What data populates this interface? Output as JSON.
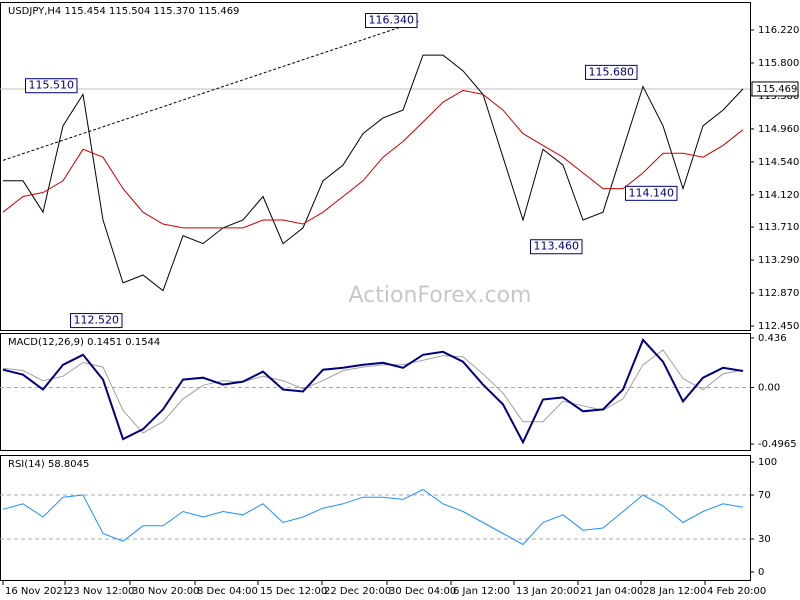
{
  "chart_data": [
    {
      "type": "line",
      "title": "USDJPY,H4  115.454 115.504 115.370 115.469",
      "watermark": "ActionForex.com",
      "x": [
        0,
        1,
        2,
        3,
        4,
        5,
        6,
        7,
        8,
        9,
        10,
        11,
        12,
        13,
        14,
        15,
        16,
        17,
        18,
        19,
        20,
        21,
        22,
        23,
        24,
        25,
        26,
        27,
        28,
        29,
        30,
        31,
        32,
        33,
        34,
        35,
        36,
        37
      ],
      "xlim": [
        -0.15,
        37.35
      ],
      "ylim": [
        112.4,
        116.576
      ],
      "yticks": [
        {
          "value": 116.22,
          "label": "116.220"
        },
        {
          "value": 115.8,
          "label": "115.800"
        },
        {
          "value": 115.38,
          "label": "115.380"
        },
        {
          "value": 114.96,
          "label": "114.960"
        },
        {
          "value": 114.54,
          "label": "114.540"
        },
        {
          "value": 114.12,
          "label": "114.120"
        },
        {
          "value": 113.71,
          "label": "113.710"
        },
        {
          "value": 113.29,
          "label": "113.290"
        },
        {
          "value": 112.87,
          "label": "112.870"
        },
        {
          "value": 112.45,
          "label": "112.450"
        }
      ],
      "series": [
        {
          "color": "#000000",
          "values": [
            114.3,
            114.3,
            113.9,
            115.0,
            115.4,
            113.8,
            113.0,
            113.1,
            112.9,
            113.6,
            113.5,
            113.7,
            113.8,
            114.1,
            113.5,
            113.7,
            114.3,
            114.5,
            114.9,
            115.1,
            115.2,
            115.9,
            115.9,
            115.7,
            115.4,
            114.6,
            113.8,
            114.7,
            114.5,
            113.8,
            113.9,
            114.7,
            115.5,
            115.0,
            114.2,
            115.0,
            115.2,
            115.469
          ]
        },
        {
          "color": "#d00000",
          "values": [
            113.9,
            114.1,
            114.15,
            114.3,
            114.7,
            114.6,
            114.2,
            113.9,
            113.75,
            113.7,
            113.7,
            113.7,
            113.7,
            113.8,
            113.8,
            113.75,
            113.9,
            114.1,
            114.3,
            114.6,
            114.8,
            115.05,
            115.3,
            115.45,
            115.4,
            115.2,
            114.9,
            114.75,
            114.6,
            114.4,
            114.2,
            114.2,
            114.4,
            114.65,
            114.65,
            114.6,
            114.75,
            114.95
          ]
        }
      ],
      "trendline": {
        "x": [
          0,
          20.85
        ],
        "values": [
          114.56,
          116.34
        ]
      },
      "annotations": [
        {
          "label": "116.340",
          "value": 116.34,
          "x": 20.85
        },
        {
          "label": "115.510",
          "value": 115.51,
          "x": 3.85
        },
        {
          "label": "115.680",
          "value": 115.68,
          "x": 31.85
        },
        {
          "label": "114.140",
          "value": 114.14,
          "x": 33.85
        },
        {
          "label": "113.460",
          "value": 113.46,
          "x": 29.1
        },
        {
          "label": "112.520",
          "value": 112.52,
          "x": 6.1
        }
      ],
      "last_price": {
        "value": 115.469,
        "label": "115.469"
      }
    },
    {
      "type": "line",
      "title": "MACD(12,26,9) 0.1451 0.1544",
      "x": [
        0,
        1,
        2,
        3,
        4,
        5,
        6,
        7,
        8,
        9,
        10,
        11,
        12,
        13,
        14,
        15,
        16,
        17,
        18,
        19,
        20,
        21,
        22,
        23,
        24,
        25,
        26,
        27,
        28,
        29,
        30,
        31,
        32,
        33,
        34,
        35,
        36,
        37
      ],
      "xlim": [
        -0.15,
        37.35
      ],
      "ylim": [
        -0.549,
        0.4796
      ],
      "yticks": [
        0.436,
        {
          "value": 0,
          "label": "0.00"
        },
        -0.4965
      ],
      "levels": [
        0
      ],
      "series": [
        {
          "color": "#a0a0a0",
          "values": [
            0.17,
            0.15,
            0.06,
            0.1,
            0.22,
            0.18,
            -0.2,
            -0.4,
            -0.3,
            -0.1,
            0.02,
            0.06,
            0.05,
            0.1,
            0.06,
            -0.01,
            0.06,
            0.15,
            0.18,
            0.2,
            0.2,
            0.24,
            0.28,
            0.27,
            0.12,
            -0.05,
            -0.3,
            -0.3,
            -0.12,
            -0.16,
            -0.2,
            -0.1,
            0.2,
            0.33,
            0.08,
            -0.02,
            0.12,
            0.1544
          ]
        },
        {
          "color": "#000080",
          "values": [
            0.157,
            0.113,
            -0.017,
            0.2,
            0.288,
            0.07,
            -0.453,
            -0.366,
            -0.192,
            0.07,
            0.087,
            0.026,
            0.052,
            0.14,
            -0.017,
            -0.035,
            0.157,
            0.174,
            0.2,
            0.218,
            0.174,
            0.288,
            0.314,
            0.227,
            0.026,
            -0.148,
            -0.48,
            -0.105,
            -0.087,
            -0.209,
            -0.192,
            -0.017,
            0.419,
            0.227,
            -0.122,
            0.087,
            0.174,
            0.1451
          ]
        }
      ]
    },
    {
      "type": "line",
      "title": "RSI(14) 58.8045",
      "x": [
        0,
        1,
        2,
        3,
        4,
        5,
        6,
        7,
        8,
        9,
        10,
        11,
        12,
        13,
        14,
        15,
        16,
        17,
        18,
        19,
        20,
        21,
        22,
        23,
        24,
        25,
        26,
        27,
        28,
        29,
        30,
        31,
        32,
        33,
        34,
        35,
        36,
        37
      ],
      "xlim": [
        -0.15,
        37.35
      ],
      "ylim": [
        -7.3,
        106.4
      ],
      "yticks": [
        100,
        70,
        30,
        0
      ],
      "levels": [
        70,
        30
      ],
      "series": [
        {
          "color": "#1e90ff",
          "values": [
            57,
            62,
            50,
            68,
            70,
            35,
            28,
            42,
            42,
            55,
            50,
            55,
            52,
            62,
            45,
            50,
            58,
            62,
            68,
            68,
            66,
            75,
            62,
            55,
            45,
            35,
            25,
            45,
            52,
            38,
            40,
            55,
            70,
            60,
            45,
            55,
            62,
            58.8045
          ]
        }
      ],
      "xticks": [
        {
          "value": 0,
          "label": "16 Nov 2021"
        },
        {
          "value": 3.1,
          "label": "23 Nov 12:00"
        },
        {
          "value": 6.35,
          "label": "30 Nov 20:00"
        },
        {
          "value": 9.6,
          "label": "8 Dec 04:00"
        },
        {
          "value": 12.75,
          "label": "15 Dec 12:00"
        },
        {
          "value": 15.95,
          "label": "22 Dec 20:00"
        },
        {
          "value": 19.2,
          "label": "30 Dec 04:00"
        },
        {
          "value": 22.4,
          "label": "6 Jan 12:00"
        },
        {
          "value": 25.55,
          "label": "13 Jan 20:00"
        },
        {
          "value": 28.75,
          "label": "21 Jan 04:00"
        },
        {
          "value": 31.9,
          "label": "28 Jan 12:00"
        },
        {
          "value": 35.1,
          "label": "4 Feb 20:00"
        }
      ]
    }
  ]
}
